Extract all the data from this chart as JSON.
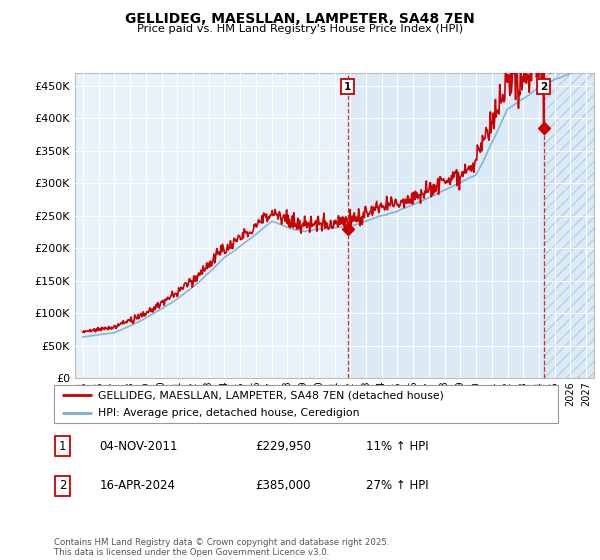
{
  "title": "GELLIDEG, MAESLLAN, LAMPETER, SA48 7EN",
  "subtitle": "Price paid vs. HM Land Registry's House Price Index (HPI)",
  "ytick_values": [
    0,
    50000,
    100000,
    150000,
    200000,
    250000,
    300000,
    350000,
    400000,
    450000
  ],
  "ylim": [
    0,
    470000
  ],
  "xlim_start": 1994.5,
  "xlim_end": 2027.5,
  "marker1_x": 2011.84,
  "marker1_label": "1",
  "marker1_price": "£229,950",
  "marker1_date": "04-NOV-2011",
  "marker1_hpi": "11% ↑ HPI",
  "marker2_x": 2024.29,
  "marker2_label": "2",
  "marker2_price": "£385,000",
  "marker2_date": "16-APR-2024",
  "marker2_hpi": "27% ↑ HPI",
  "hpi_line_color": "#7bafd4",
  "price_line_color": "#cc0000",
  "bg_chart": "#e8f2fb",
  "bg_shade_start": 2012.0,
  "bg_future_hatch_start": 2024.29,
  "grid_color": "#ffffff",
  "legend_label_price": "GELLIDEG, MAESLLAN, LAMPETER, SA48 7EN (detached house)",
  "legend_label_hpi": "HPI: Average price, detached house, Ceredigion",
  "footer": "Contains HM Land Registry data © Crown copyright and database right 2025.\nThis data is licensed under the Open Government Licence v3.0."
}
